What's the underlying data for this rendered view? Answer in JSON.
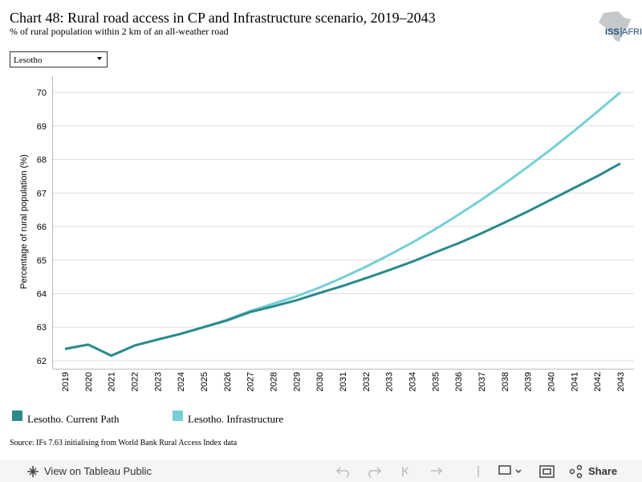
{
  "chart_data": {
    "type": "line",
    "title": "Chart 48: Rural road access in CP and Infrastructure scenario, 2019–2043",
    "subtitle": "% of rural population within 2 km of an all-weather road",
    "y_label": "Percentage of rural population (%)",
    "categories": [
      "2019",
      "2020",
      "2021",
      "2022",
      "2023",
      "2024",
      "2025",
      "2026",
      "2027",
      "2028",
      "2029",
      "2030",
      "2031",
      "2032",
      "2033",
      "2034",
      "2035",
      "2036",
      "2037",
      "2038",
      "2039",
      "2040",
      "2041",
      "2042",
      "2043"
    ],
    "series": [
      {
        "name": "Lesotho. Current Path",
        "color": "#2a8a8c",
        "values": [
          62.35,
          62.48,
          62.15,
          62.45,
          62.63,
          62.8,
          63.0,
          63.2,
          63.45,
          63.62,
          63.8,
          64.02,
          64.23,
          64.46,
          64.7,
          64.95,
          65.23,
          65.5,
          65.8,
          66.12,
          66.45,
          66.8,
          67.15,
          67.5,
          67.88
        ]
      },
      {
        "name": "Lesotho. Infrastructure",
        "color": "#76cfd6",
        "values": [
          62.35,
          62.48,
          62.15,
          62.45,
          62.63,
          62.8,
          63.0,
          63.22,
          63.48,
          63.7,
          63.92,
          64.18,
          64.48,
          64.8,
          65.15,
          65.52,
          65.92,
          66.35,
          66.8,
          67.28,
          67.78,
          68.3,
          68.85,
          69.42,
          70.0
        ]
      }
    ],
    "ylim": [
      61.76,
      70.48
    ],
    "yticks": [
      62,
      63,
      64,
      65,
      66,
      67,
      68,
      69,
      70
    ],
    "grid": true,
    "source": "Source: IFs 7.63 initialising from World Bank Rural Access Index data"
  },
  "dropdown": {
    "selected": "Lesotho"
  },
  "logo": {
    "left": "ISS",
    "right": "AFRICA"
  },
  "toolbar": {
    "view": "View on Tableau Public",
    "share": "Share"
  }
}
